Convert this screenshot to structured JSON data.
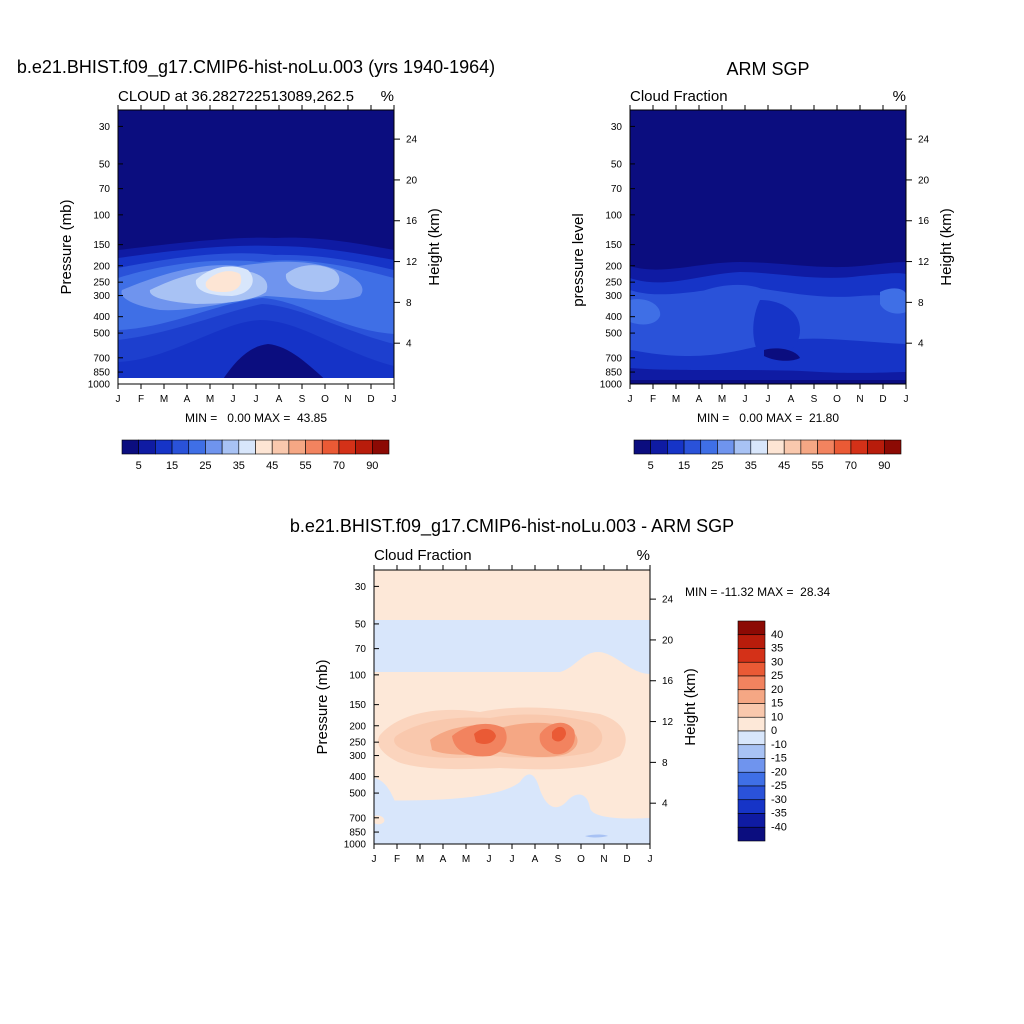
{
  "colors": {
    "cloud_scale": [
      "#0b0d7f",
      "#0f1ba3",
      "#1634c7",
      "#2a52d9",
      "#3f6fe6",
      "#6f94ee",
      "#a8c2f4",
      "#d8e6fb",
      "#fde5d4",
      "#f9c8ad",
      "#f5a784",
      "#f2835f",
      "#ea5a35",
      "#d43118",
      "#b81c0b",
      "#8c0a04"
    ],
    "diff_scale": [
      "#0b0d7f",
      "#0f1ba3",
      "#1634c7",
      "#2a52d9",
      "#3f6fe6",
      "#6f94ee",
      "#a8c2f4",
      "#d8e6fb",
      "#fde8d8",
      "#f9c8ad",
      "#f5a784",
      "#f2835f",
      "#ea5a35",
      "#d43118",
      "#b81c0b",
      "#8c0a04"
    ]
  },
  "plots": {
    "model": {
      "title": "b.e21.BHIST.f09_g17.CMIP6-hist-noLu.003 (yrs 1940-1964)",
      "left_string": "CLOUD at 36.282722513089,262.5",
      "right_string": "%",
      "ylabel": "Pressure (mb)",
      "ylabel2": "Height (km)",
      "minmax": "MIN =   0.00 MAX =  43.85"
    },
    "obs": {
      "title": "ARM SGP",
      "left_string": "Cloud Fraction",
      "right_string": "%",
      "ylabel": "pressure level",
      "ylabel2": "Height (km)",
      "minmax": "MIN =   0.00 MAX =  21.80"
    },
    "diff": {
      "title": "b.e21.BHIST.f09_g17.CMIP6-hist-noLu.003 - ARM SGP",
      "left_string": "Cloud Fraction",
      "right_string": "%",
      "ylabel": "Pressure (mb)",
      "ylabel2": "Height (km)",
      "minmax": "MIN = -11.32 MAX =  28.34"
    }
  },
  "colorbars": {
    "cloud_labels": [
      "5",
      "15",
      "25",
      "35",
      "45",
      "55",
      "70",
      "90"
    ],
    "diff_labels": [
      "40",
      "35",
      "30",
      "25",
      "20",
      "15",
      "10",
      "0",
      "-10",
      "-15",
      "-20",
      "-25",
      "-30",
      "-35",
      "-40"
    ]
  },
  "chart_data": [
    {
      "type": "heatmap",
      "title": "b.e21.BHIST.f09_g17.CMIP6-hist-noLu.003 (yrs 1940-1964)",
      "subtitle": "CLOUD at 36.282722513089,262.5",
      "units": "%",
      "xlabel": "",
      "ylabel": "Pressure (mb)",
      "ylabel_right": "Height (km)",
      "x_ticks": [
        "J",
        "F",
        "M",
        "A",
        "M",
        "J",
        "J",
        "A",
        "S",
        "O",
        "N",
        "D",
        "J"
      ],
      "y_ticks": [
        30,
        50,
        70,
        100,
        150,
        200,
        250,
        300,
        400,
        500,
        700,
        850,
        1000
      ],
      "y2_ticks": [
        4,
        8,
        12,
        16,
        20,
        24
      ],
      "min": 0.0,
      "max": 43.85,
      "colorbar_levels": [
        5,
        15,
        25,
        35,
        45,
        55,
        70,
        90
      ]
    },
    {
      "type": "heatmap",
      "title": "ARM SGP",
      "subtitle": "Cloud Fraction",
      "units": "%",
      "xlabel": "",
      "ylabel": "pressure level",
      "ylabel_right": "Height (km)",
      "x_ticks": [
        "J",
        "F",
        "M",
        "A",
        "M",
        "J",
        "J",
        "A",
        "S",
        "O",
        "N",
        "D",
        "J"
      ],
      "y_ticks": [
        30,
        50,
        70,
        100,
        150,
        200,
        250,
        300,
        400,
        500,
        700,
        850,
        1000
      ],
      "y2_ticks": [
        4,
        8,
        12,
        16,
        20,
        24
      ],
      "min": 0.0,
      "max": 21.8,
      "colorbar_levels": [
        5,
        15,
        25,
        35,
        45,
        55,
        70,
        90
      ]
    },
    {
      "type": "heatmap",
      "title": "b.e21.BHIST.f09_g17.CMIP6-hist-noLu.003 - ARM SGP",
      "subtitle": "Cloud Fraction",
      "units": "%",
      "xlabel": "",
      "ylabel": "Pressure (mb)",
      "ylabel_right": "Height (km)",
      "x_ticks": [
        "J",
        "F",
        "M",
        "A",
        "M",
        "J",
        "J",
        "A",
        "S",
        "O",
        "N",
        "D",
        "J"
      ],
      "y_ticks": [
        30,
        50,
        70,
        100,
        150,
        200,
        250,
        300,
        400,
        500,
        700,
        850,
        1000
      ],
      "y2_ticks": [
        4,
        8,
        12,
        16,
        20,
        24
      ],
      "min": -11.32,
      "max": 28.34,
      "colorbar_levels": [
        40,
        35,
        30,
        25,
        20,
        15,
        10,
        0,
        -10,
        -15,
        -20,
        -25,
        -30,
        -35,
        -40
      ]
    }
  ]
}
